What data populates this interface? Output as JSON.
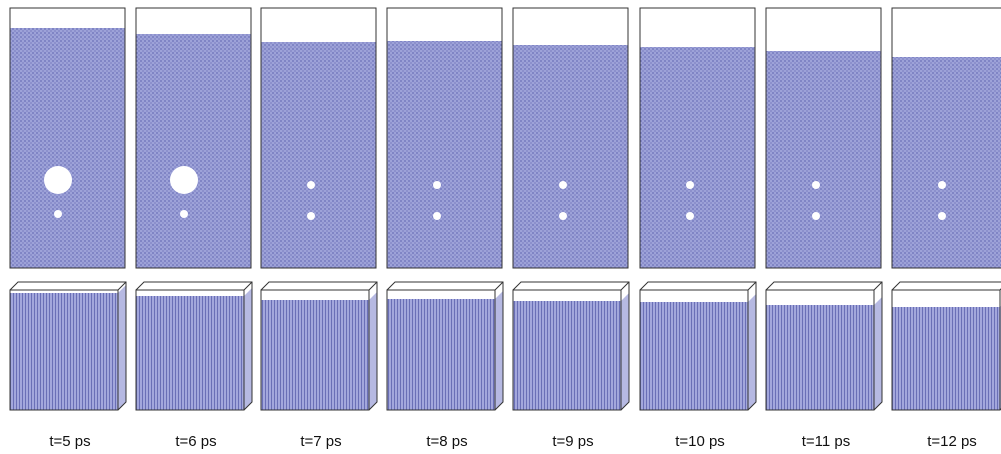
{
  "panels": [
    {
      "label": "t=5 ps"
    },
    {
      "label": "t=6 ps"
    },
    {
      "label": "t=7 ps"
    },
    {
      "label": "t=8 ps"
    },
    {
      "label": "t=9 ps"
    },
    {
      "label": "t=10 ps"
    },
    {
      "label": "t=11 ps"
    },
    {
      "label": "t=12 ps"
    }
  ]
}
